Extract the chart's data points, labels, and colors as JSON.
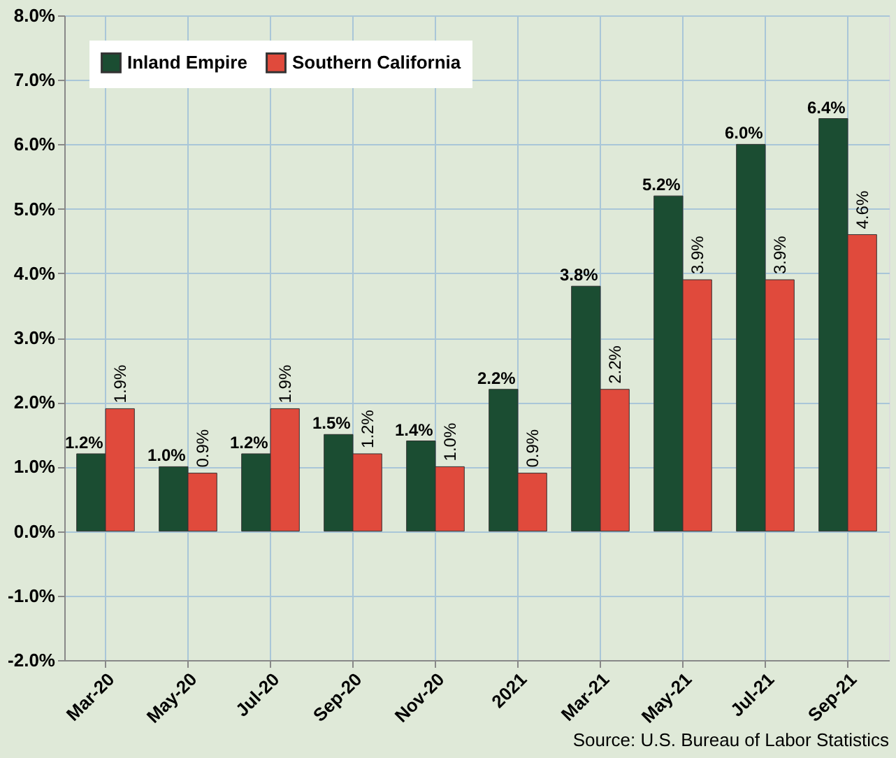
{
  "chart_data": {
    "type": "bar",
    "categories": [
      "Mar-20",
      "May-20",
      "Jul-20",
      "Sep-20",
      "Nov-20",
      "2021",
      "Mar-21",
      "May-21",
      "Jul-21",
      "Sep-21"
    ],
    "series": [
      {
        "name": "Inland Empire",
        "color": "#1b4d32",
        "values": [
          1.2,
          1.0,
          1.2,
          1.5,
          1.4,
          2.2,
          3.8,
          5.2,
          6.0,
          6.4
        ],
        "value_labels": [
          "1.2%",
          "1.0%",
          "1.2%",
          "1.5%",
          "1.4%",
          "2.2%",
          "3.8%",
          "5.2%",
          "6.0%",
          "6.4%"
        ]
      },
      {
        "name": "Southern California",
        "color": "#e04a3c",
        "values": [
          1.9,
          0.9,
          1.9,
          1.2,
          1.0,
          0.9,
          2.2,
          3.9,
          3.9,
          4.6
        ],
        "value_labels": [
          "1.9%",
          "0.9%",
          "1.9%",
          "1.2%",
          "1.0%",
          "0.9%",
          "2.2%",
          "3.9%",
          "3.9%",
          "4.6%"
        ]
      }
    ],
    "ylim": [
      -2,
      8
    ],
    "yticks": [
      {
        "value": -2,
        "label": "-2.0%"
      },
      {
        "value": -1,
        "label": "-1.0%"
      },
      {
        "value": 0,
        "label": "0.0%"
      },
      {
        "value": 1,
        "label": "1.0%"
      },
      {
        "value": 2,
        "label": "2.0%"
      },
      {
        "value": 3,
        "label": "3.0%"
      },
      {
        "value": 4,
        "label": "4.0%"
      },
      {
        "value": 5,
        "label": "5.0%"
      },
      {
        "value": 6,
        "label": "6.0%"
      },
      {
        "value": 7,
        "label": "7.0%"
      },
      {
        "value": 8,
        "label": "8.0%"
      }
    ],
    "grid": true,
    "legend": "top left",
    "annotations": [
      "Source:  U.S. Bureau of Labor Statistics"
    ]
  }
}
